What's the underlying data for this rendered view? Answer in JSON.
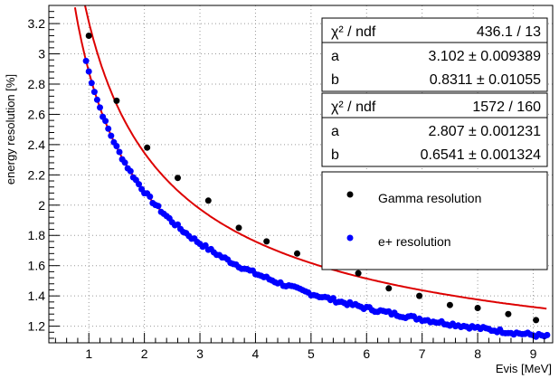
{
  "chart_data": {
    "type": "scatter",
    "xlabel": "Evis [MeV]",
    "ylabel": "energy resolution [%]",
    "xlim": [
      0.28,
      9.35
    ],
    "ylim": [
      1.09,
      3.32
    ],
    "x_ticks": [
      1,
      2,
      3,
      4,
      5,
      6,
      7,
      8,
      9
    ],
    "y_ticks": [
      1.2,
      1.4,
      1.6,
      1.8,
      2,
      2.2,
      2.4,
      2.6,
      2.8,
      3,
      3.2
    ],
    "x_tick_labels": [
      "1",
      "2",
      "3",
      "4",
      "5",
      "6",
      "7",
      "8",
      "9"
    ],
    "y_tick_labels": [
      "1.2",
      "1.4",
      "1.6",
      "1.8",
      "2",
      "2.2",
      "2.4",
      "2.6",
      "2.8",
      "3",
      "3.2"
    ],
    "grid": true,
    "colors": {
      "gamma": "#000000",
      "positron": "#0000ff",
      "fit": "#dd0000"
    },
    "series": [
      {
        "name": "Gamma resolution",
        "color": "#000000",
        "x": [
          1.0,
          1.5,
          2.05,
          2.6,
          3.15,
          3.7,
          4.2,
          4.75,
          5.3,
          5.85,
          6.4,
          6.95,
          7.5,
          8.0,
          8.55,
          9.05
        ],
        "y": [
          3.12,
          2.69,
          2.38,
          2.18,
          2.03,
          1.85,
          1.76,
          1.68,
          1.6,
          1.55,
          1.45,
          1.4,
          1.34,
          1.32,
          1.28,
          1.24
        ]
      },
      {
        "name": "e+ resolution",
        "color": "#0000ff",
        "x_start": 0.95,
        "x_end": 9.25,
        "fit_a": 2.807,
        "fit_b": 0.6541
      }
    ],
    "fits": [
      {
        "series": "Gamma resolution",
        "chi2_label": "χ² / ndf",
        "chi2_value": "436.1 / 13",
        "a_label": "a",
        "a_value": "3.102 ± 0.009389",
        "b_label": "b",
        "b_value": "0.8311 ± 0.01055",
        "a": 3.102,
        "b": 0.8311,
        "color": "#dd0000"
      },
      {
        "series": "e+ resolution",
        "chi2_label": "χ² / ndf",
        "chi2_value": "1572 / 160",
        "a_label": "a",
        "a_value": "2.807 ± 0.001231",
        "b_label": "b",
        "b_value": "0.6541 ± 0.001324",
        "a": 2.807,
        "b": 0.6541,
        "color": "#dd0000"
      }
    ],
    "legend": {
      "placement": "right",
      "entries": [
        "Gamma resolution",
        "e+ resolution"
      ]
    }
  }
}
